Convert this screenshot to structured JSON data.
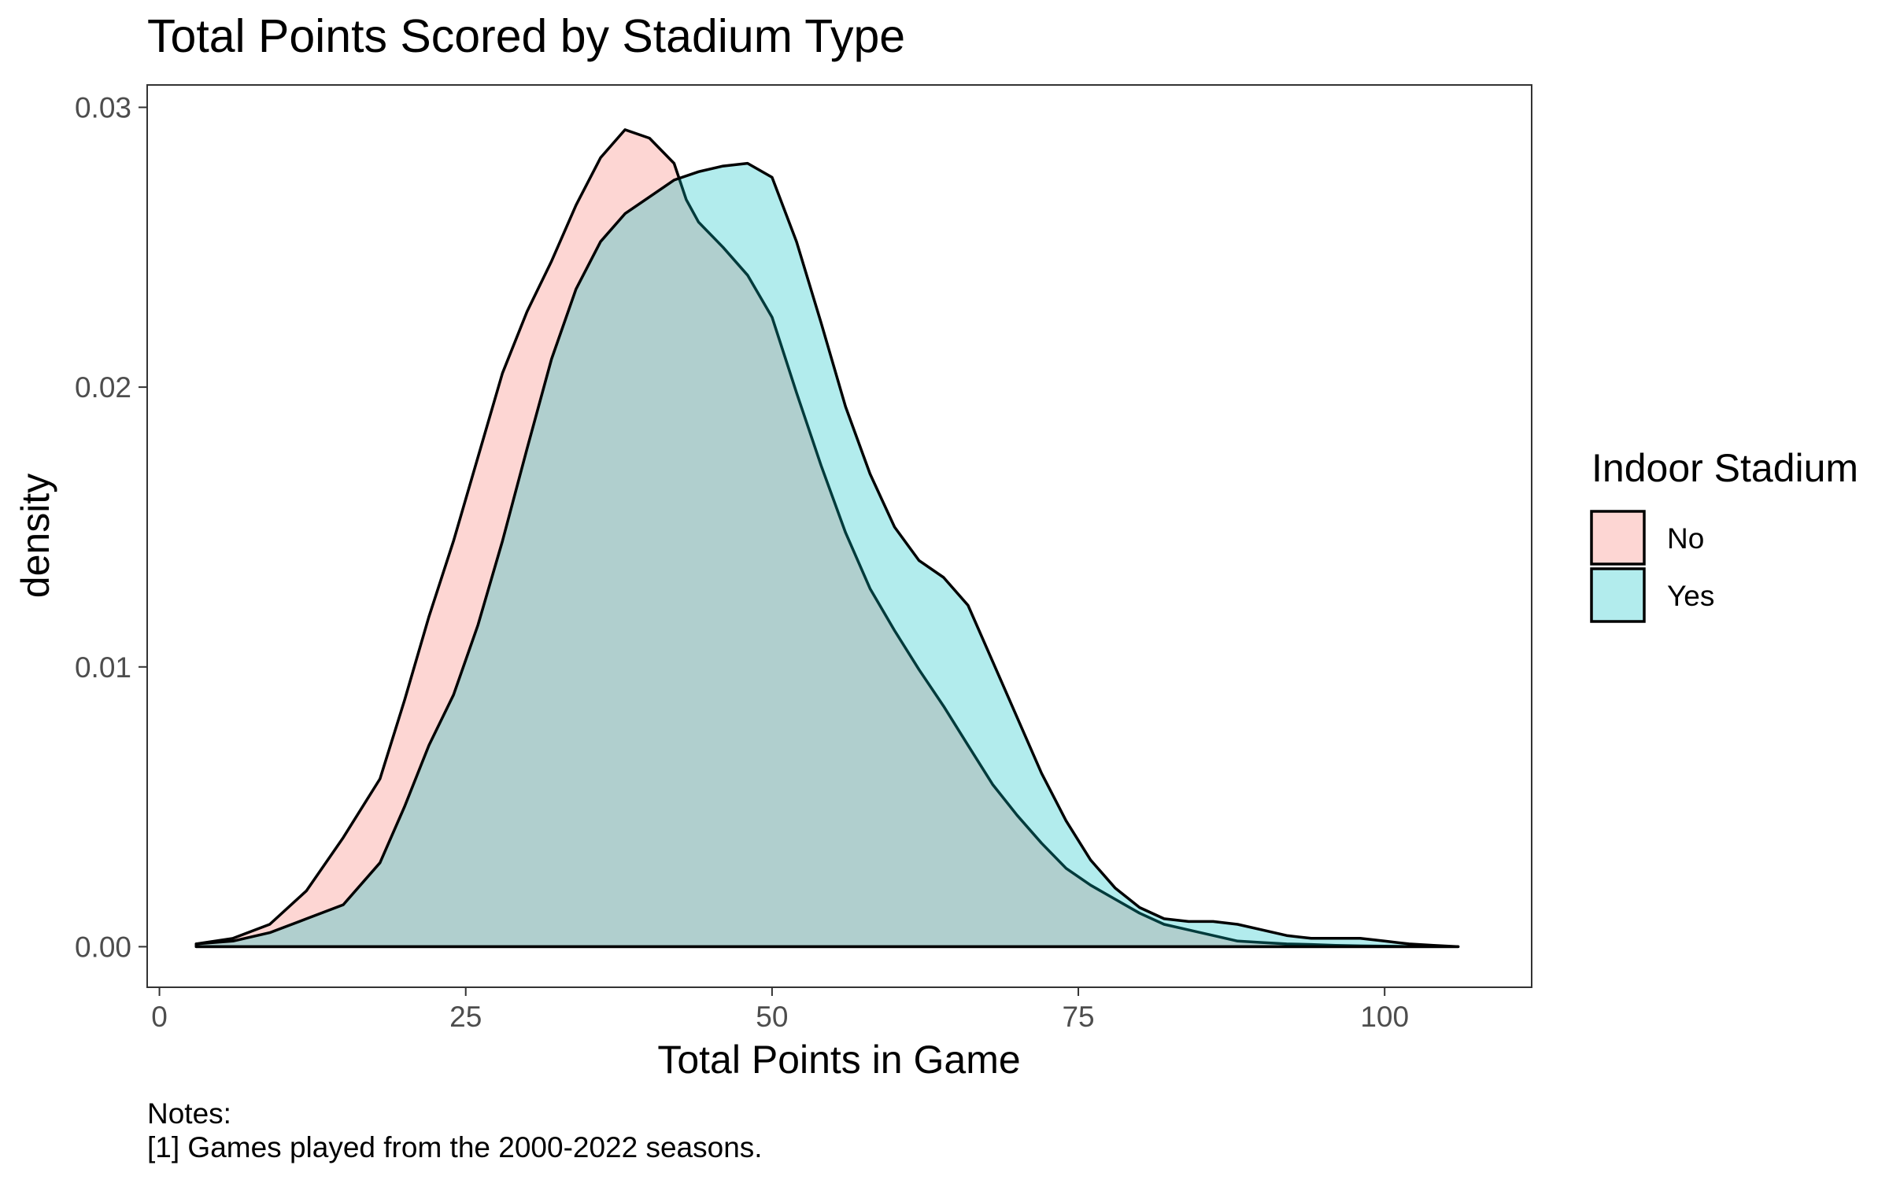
{
  "chart_data": {
    "type": "area",
    "title": "Total Points Scored by Stadium Type",
    "xlabel": "Total Points in Game",
    "ylabel": "density",
    "xlim": [
      -1,
      112
    ],
    "ylim": [
      -0.00145,
      0.0308
    ],
    "x_ticks": [
      0,
      25,
      50,
      75,
      100
    ],
    "x_tick_labels": [
      "0",
      "25",
      "50",
      "75",
      "100"
    ],
    "y_ticks": [
      0.0,
      0.01,
      0.02,
      0.03
    ],
    "y_tick_labels": [
      "0.00",
      "0.01",
      "0.02",
      "0.03"
    ],
    "grid": false,
    "legend": {
      "title": "Indoor Stadium",
      "position": "right"
    },
    "series": [
      {
        "name": "No",
        "color": "#F8766D",
        "fill_opacity": 0.3,
        "x": [
          3,
          6,
          9,
          12,
          15,
          18,
          20,
          22,
          24,
          26,
          28,
          30,
          32,
          34,
          36,
          38,
          40,
          42,
          43,
          44,
          46,
          48,
          50,
          52,
          54,
          56,
          58,
          60,
          62,
          64,
          66,
          68,
          70,
          72,
          74,
          76,
          78,
          80,
          82,
          84,
          86,
          88,
          90,
          92,
          94,
          96,
          98,
          100,
          102,
          104,
          106
        ],
        "y": [
          0.0001,
          0.0003,
          0.0008,
          0.002,
          0.0039,
          0.006,
          0.0088,
          0.0118,
          0.0145,
          0.0175,
          0.0205,
          0.0227,
          0.0245,
          0.0265,
          0.0282,
          0.0292,
          0.0289,
          0.028,
          0.0267,
          0.0259,
          0.025,
          0.024,
          0.0225,
          0.0198,
          0.0172,
          0.0148,
          0.0128,
          0.0113,
          0.0099,
          0.0086,
          0.0072,
          0.0058,
          0.0047,
          0.0037,
          0.0028,
          0.0022,
          0.0017,
          0.0012,
          0.0008,
          0.0006,
          0.0004,
          0.0002,
          0.00015,
          0.0001,
          8e-05,
          5e-05,
          3e-05,
          2e-05,
          1e-05,
          5e-06,
          0
        ]
      },
      {
        "name": "Yes",
        "color": "#00BFC4",
        "fill_opacity": 0.3,
        "x": [
          3,
          6,
          9,
          12,
          15,
          18,
          20,
          22,
          24,
          26,
          28,
          30,
          32,
          34,
          36,
          38,
          40,
          42,
          44,
          46,
          48,
          50,
          52,
          54,
          56,
          58,
          60,
          62,
          64,
          66,
          68,
          70,
          72,
          74,
          76,
          78,
          80,
          82,
          84,
          86,
          88,
          90,
          92,
          94,
          96,
          98,
          100,
          102,
          104,
          106
        ],
        "y": [
          0.0001,
          0.0002,
          0.0005,
          0.001,
          0.0015,
          0.003,
          0.005,
          0.0072,
          0.009,
          0.0115,
          0.0145,
          0.0178,
          0.021,
          0.0235,
          0.0252,
          0.0262,
          0.0268,
          0.0274,
          0.0277,
          0.0279,
          0.028,
          0.0275,
          0.0252,
          0.0223,
          0.0193,
          0.0169,
          0.015,
          0.0138,
          0.0132,
          0.0122,
          0.0102,
          0.0082,
          0.0062,
          0.0045,
          0.0031,
          0.0021,
          0.0014,
          0.001,
          0.0009,
          0.0009,
          0.0008,
          0.0006,
          0.0004,
          0.0003,
          0.0003,
          0.0003,
          0.0002,
          0.0001,
          5e-05,
          0
        ]
      }
    ]
  },
  "notes": {
    "title": "Notes:",
    "lines": [
      "[1] Games played from the 2000-2022 seasons."
    ]
  }
}
